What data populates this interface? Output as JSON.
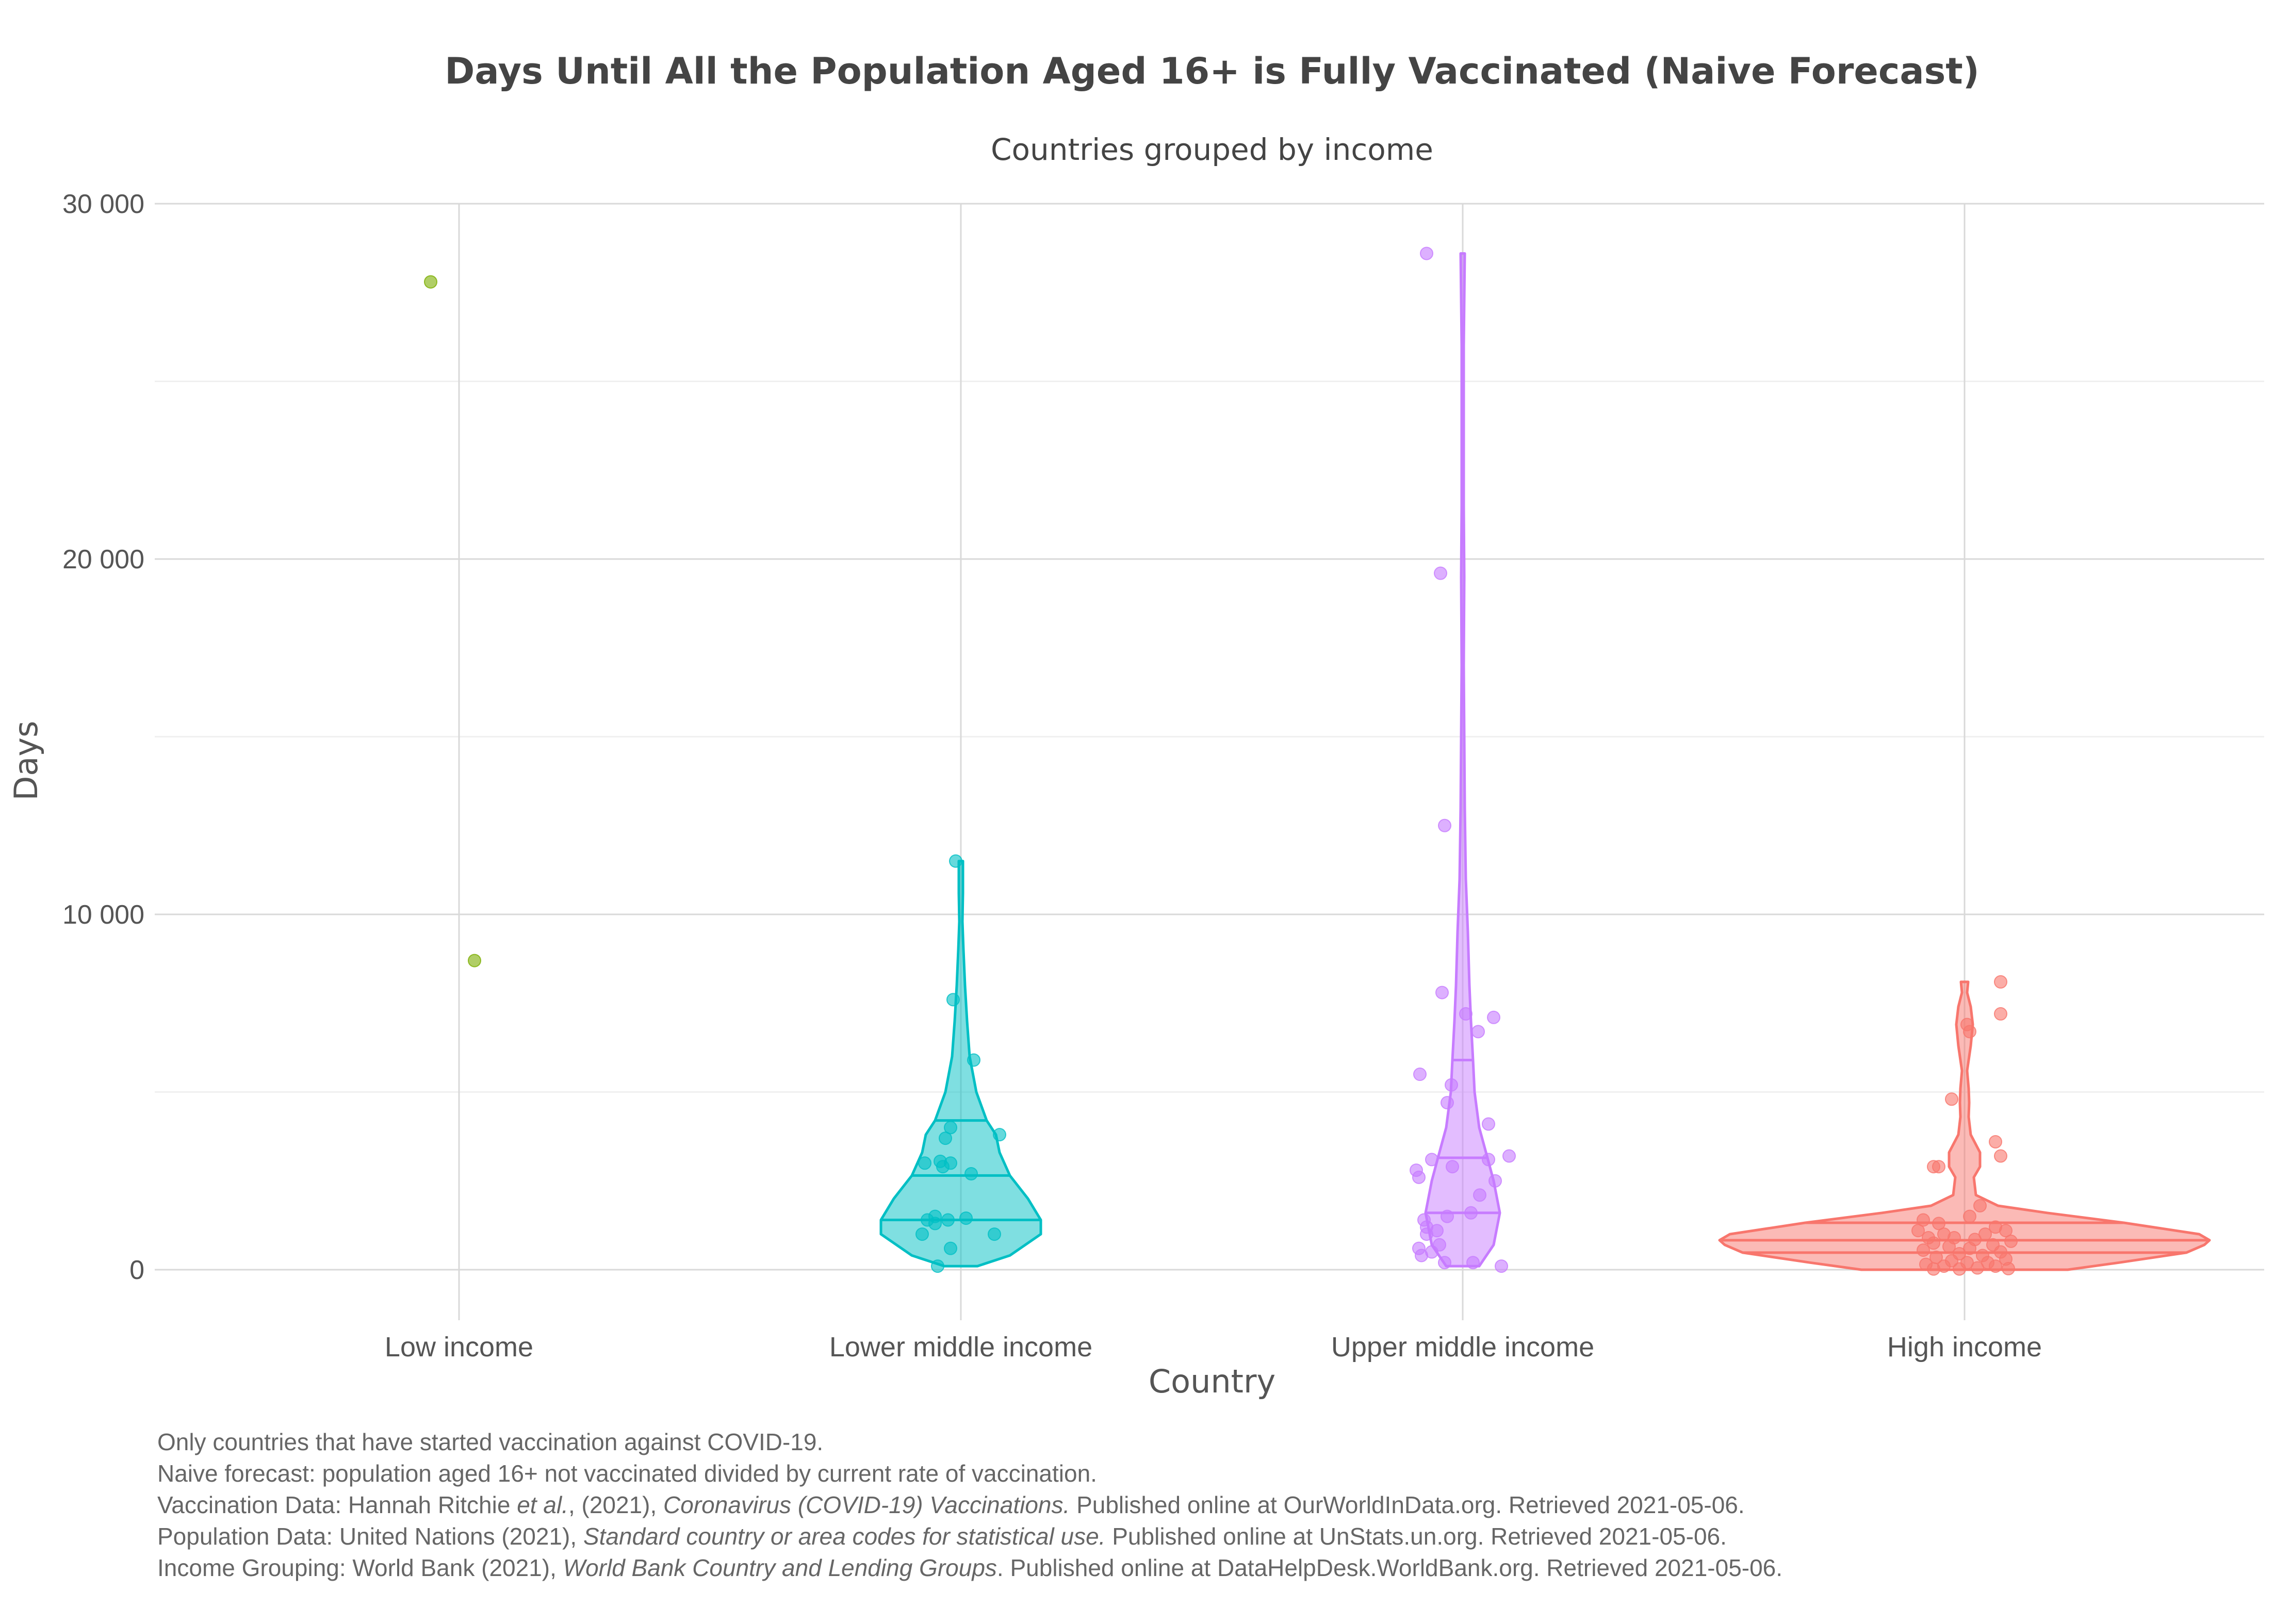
{
  "chart_data": {
    "type": "violin",
    "title": "Days Until All the Population Aged 16+ is Fully Vaccinated (Naive Forecast)",
    "subtitle": "Countries grouped by income",
    "xlabel": "Country",
    "ylabel": "Days",
    "ylim": [
      -1200,
      30000
    ],
    "yticks": [
      0,
      10000,
      20000,
      30000
    ],
    "ytick_labels": [
      "0",
      "10 000",
      "20 000",
      "30 000"
    ],
    "grid": true,
    "categories": [
      "Low income",
      "Lower middle income",
      "Upper middle income",
      "High income"
    ],
    "colors": {
      "Low income": "#7CAE00",
      "Lower middle income": "#00BFC4",
      "Upper middle income": "#C77CFF",
      "High income": "#F8766D"
    },
    "series": [
      {
        "category": "Low income",
        "color": "#7CAE00",
        "points": [
          [
            -0.55,
            27800
          ],
          [
            0.3,
            8700
          ]
        ],
        "violin": null
      },
      {
        "category": "Lower middle income",
        "color": "#00BFC4",
        "quartiles": [
          1400,
          2650,
          4200
        ],
        "violin": [
          [
            100,
            0.32
          ],
          [
            400,
            0.95
          ],
          [
            1000,
            1.55
          ],
          [
            1400,
            1.55
          ],
          [
            2000,
            1.3
          ],
          [
            2650,
            0.95
          ],
          [
            3300,
            0.75
          ],
          [
            3800,
            0.68
          ],
          [
            4200,
            0.5
          ],
          [
            5000,
            0.3
          ],
          [
            6000,
            0.17
          ],
          [
            7000,
            0.12
          ],
          [
            8000,
            0.08
          ],
          [
            9000,
            0.05
          ],
          [
            9800,
            0.03
          ],
          [
            10600,
            0.04
          ],
          [
            11500,
            0.04
          ]
        ],
        "points": [
          [
            -0.1,
            11500
          ],
          [
            -0.2,
            4000
          ],
          [
            -0.3,
            3700
          ],
          [
            0.25,
            5900
          ],
          [
            -0.7,
            3000
          ],
          [
            -0.4,
            3050
          ],
          [
            -0.2,
            3000
          ],
          [
            0.75,
            3800
          ],
          [
            -0.65,
            1400
          ],
          [
            -0.5,
            1500
          ],
          [
            -0.25,
            1400
          ],
          [
            -0.75,
            1000
          ],
          [
            0.65,
            1000
          ],
          [
            -0.2,
            600
          ],
          [
            -0.45,
            100
          ],
          [
            -0.15,
            7600
          ],
          [
            -0.5,
            1300
          ],
          [
            0.1,
            1450
          ],
          [
            -0.35,
            2900
          ],
          [
            0.2,
            2700
          ]
        ]
      },
      {
        "category": "Upper middle income",
        "color": "#C77CFF",
        "quartiles": [
          1600,
          3150,
          5900
        ],
        "violin": [
          [
            100,
            0.32
          ],
          [
            700,
            0.6
          ],
          [
            1600,
            0.72
          ],
          [
            2500,
            0.6
          ],
          [
            3150,
            0.48
          ],
          [
            4000,
            0.32
          ],
          [
            5000,
            0.23
          ],
          [
            5900,
            0.2
          ],
          [
            7000,
            0.16
          ],
          [
            8000,
            0.13
          ],
          [
            9500,
            0.1
          ],
          [
            11000,
            0.06
          ],
          [
            13000,
            0.04
          ],
          [
            15000,
            0.03
          ],
          [
            17000,
            0.02
          ],
          [
            19500,
            0.03
          ],
          [
            21500,
            0.02
          ],
          [
            23500,
            0.02
          ],
          [
            26000,
            0.02
          ],
          [
            28600,
            0.04
          ]
        ],
        "points": [
          [
            -0.7,
            28600
          ],
          [
            -0.43,
            19600
          ],
          [
            -0.35,
            12500
          ],
          [
            -0.4,
            7800
          ],
          [
            0.06,
            7200
          ],
          [
            0.6,
            7100
          ],
          [
            0.3,
            6700
          ],
          [
            -0.83,
            5500
          ],
          [
            -0.22,
            5200
          ],
          [
            -0.3,
            4700
          ],
          [
            0.5,
            4100
          ],
          [
            0.9,
            3200
          ],
          [
            0.5,
            3100
          ],
          [
            -0.6,
            3100
          ],
          [
            -0.2,
            2900
          ],
          [
            -0.9,
            2800
          ],
          [
            -0.85,
            2600
          ],
          [
            0.63,
            2500
          ],
          [
            0.33,
            2100
          ],
          [
            0.16,
            1600
          ],
          [
            -0.3,
            1500
          ],
          [
            -0.75,
            1400
          ],
          [
            -0.7,
            1200
          ],
          [
            -0.5,
            1100
          ],
          [
            -0.7,
            1000
          ],
          [
            -0.45,
            700
          ],
          [
            -0.85,
            600
          ],
          [
            -0.6,
            500
          ],
          [
            -0.8,
            400
          ],
          [
            -0.35,
            200
          ],
          [
            0.2,
            200
          ],
          [
            0.75,
            100
          ]
        ]
      },
      {
        "category": "High income",
        "color": "#F8766D",
        "quartiles": [
          480,
          830,
          1320
        ],
        "violin": [
          [
            0,
            2.0
          ],
          [
            200,
            3.0
          ],
          [
            480,
            4.3
          ],
          [
            700,
            4.65
          ],
          [
            830,
            4.75
          ],
          [
            1000,
            4.55
          ],
          [
            1320,
            3.1
          ],
          [
            1600,
            1.6
          ],
          [
            1800,
            0.65
          ],
          [
            2100,
            0.22
          ],
          [
            2600,
            0.18
          ],
          [
            2900,
            0.3
          ],
          [
            3300,
            0.3
          ],
          [
            3800,
            0.12
          ],
          [
            4300,
            0.08
          ],
          [
            4700,
            0.09
          ],
          [
            5100,
            0.08
          ],
          [
            5600,
            0.05
          ],
          [
            6300,
            0.12
          ],
          [
            6900,
            0.16
          ],
          [
            7400,
            0.12
          ],
          [
            7800,
            0.05
          ],
          [
            8100,
            0.07
          ]
        ],
        "points": [
          [
            0.7,
            8100
          ],
          [
            0.7,
            7200
          ],
          [
            0.05,
            6900
          ],
          [
            0.1,
            6700
          ],
          [
            -0.25,
            4800
          ],
          [
            0.6,
            3600
          ],
          [
            0.7,
            3200
          ],
          [
            -0.6,
            2900
          ],
          [
            -0.5,
            2900
          ],
          [
            0.3,
            1800
          ],
          [
            0.1,
            1500
          ],
          [
            -0.8,
            1400
          ],
          [
            -0.5,
            1300
          ],
          [
            0.6,
            1200
          ],
          [
            -0.9,
            1100
          ],
          [
            0.8,
            1100
          ],
          [
            -0.4,
            1000
          ],
          [
            0.4,
            1000
          ],
          [
            -0.7,
            900
          ],
          [
            -0.2,
            900
          ],
          [
            0.2,
            850
          ],
          [
            0.9,
            800
          ],
          [
            -0.6,
            750
          ],
          [
            0.55,
            700
          ],
          [
            -0.3,
            650
          ],
          [
            0.1,
            600
          ],
          [
            -0.8,
            550
          ],
          [
            0.7,
            500
          ],
          [
            -0.1,
            450
          ],
          [
            0.35,
            400
          ],
          [
            -0.55,
            350
          ],
          [
            0.8,
            300
          ],
          [
            -0.25,
            250
          ],
          [
            0.05,
            200
          ],
          [
            0.45,
            200
          ],
          [
            -0.75,
            150
          ],
          [
            0.6,
            100
          ],
          [
            -0.4,
            100
          ],
          [
            0.25,
            50
          ],
          [
            0.85,
            30
          ],
          [
            -0.1,
            20
          ],
          [
            -0.6,
            20
          ]
        ]
      }
    ]
  },
  "notes": [
    [
      {
        "t": "Only countries that have started vaccination against COVID-19."
      }
    ],
    [
      {
        "t": "Naive forecast: population aged 16+ not vaccinated divided by current rate of vaccination."
      }
    ],
    [
      {
        "t": "Vaccination Data: Hannah Ritchie "
      },
      {
        "t": "et al.",
        "i": true
      },
      {
        "t": ", (2021), "
      },
      {
        "t": "Coronavirus (COVID-19) Vaccinations.",
        "i": true
      },
      {
        "t": " Published online at OurWorldInData.org. Retrieved 2021-05-06."
      }
    ],
    [
      {
        "t": "Population Data: United Nations (2021), "
      },
      {
        "t": "Standard country or area codes for statistical use.",
        "i": true
      },
      {
        "t": " Published online at UnStats.un.org. Retrieved 2021-05-06."
      }
    ],
    [
      {
        "t": "Income Grouping: World Bank (2021), "
      },
      {
        "t": "World Bank Country and Lending Groups",
        "i": true
      },
      {
        "t": ". Published online at DataHelpDesk.WorldBank.org. Retrieved 2021-05-06."
      }
    ]
  ]
}
